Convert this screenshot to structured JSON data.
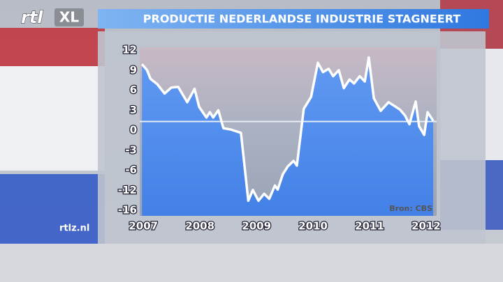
{
  "branding": {
    "logo_rtl": "rtl",
    "logo_xl": "XL",
    "site": "rtlz.nl"
  },
  "chart_data": {
    "type": "line",
    "title": "PRODUCTIE NEDERLANDSE INDUSTRIE STAGNEERT",
    "source": "Bron: CBS",
    "x": [
      2007.0,
      2007.09,
      2007.15,
      2007.27,
      2007.4,
      2007.52,
      2007.64,
      2007.8,
      2007.93,
      2008.01,
      2008.14,
      2008.2,
      2008.26,
      2008.35,
      2008.44,
      2008.57,
      2008.75,
      2008.88,
      2008.96,
      2009.06,
      2009.16,
      2009.25,
      2009.35,
      2009.4,
      2009.49,
      2009.58,
      2009.68,
      2009.74,
      2009.86,
      2009.99,
      2010.11,
      2010.2,
      2010.3,
      2010.38,
      2010.48,
      2010.57,
      2010.67,
      2010.75,
      2010.85,
      2010.94,
      2011.01,
      2011.1,
      2011.22,
      2011.36,
      2011.47,
      2011.56,
      2011.65,
      2011.73,
      2011.84,
      2011.9,
      2011.99,
      2012.05,
      2012.15
    ],
    "values": [
      9.9,
      9.0,
      7.7,
      6.9,
      5.5,
      6.4,
      6.5,
      4.2,
      6.2,
      3.5,
      1.9,
      2.7,
      1.9,
      3.0,
      0.3,
      0.1,
      -0.4,
      -14.1,
      -11.9,
      -14.1,
      -12.7,
      -13.7,
      -10.6,
      -11.8,
      -7.2,
      -5.4,
      -4.6,
      -5.3,
      3.2,
      5.0,
      10.1,
      8.7,
      9.2,
      8.1,
      9.0,
      6.3,
      7.6,
      7.0,
      8.1,
      7.3,
      10.9,
      4.8,
      2.9,
      4.2,
      3.6,
      3.1,
      2.2,
      0.9,
      4.3,
      0.6,
      -0.7,
      2.7,
      1.4
    ],
    "color": "#ffffff",
    "area_color": "#3f82f2",
    "reference_line": 1.3,
    "xlim": [
      2006.96,
      2012.21
    ],
    "xticks": [
      2007,
      2008,
      2009,
      2010,
      2011,
      2012
    ],
    "ylim": [
      -16,
      12
    ],
    "yticks": [
      12,
      9,
      6,
      3,
      0,
      -3,
      -6,
      -12,
      -16
    ]
  }
}
